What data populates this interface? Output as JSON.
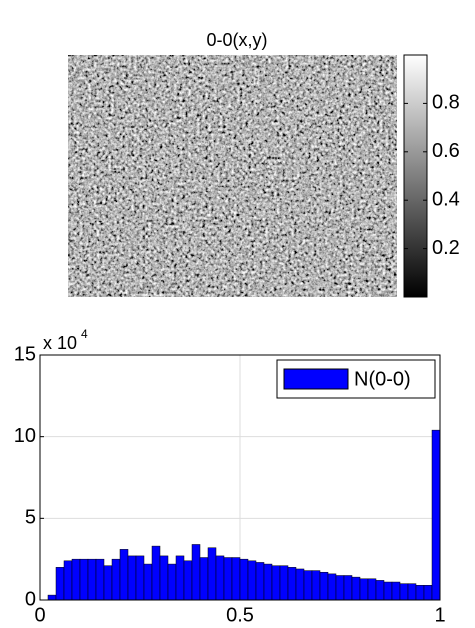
{
  "chart_data": [
    {
      "type": "image",
      "title": "0-0(x,y)",
      "title_color": "#0000ff",
      "clim": [
        0,
        1
      ],
      "cticks": [
        0.2,
        0.4,
        0.6,
        0.8
      ]
    },
    {
      "type": "histogram",
      "color": "#0000ff",
      "name": "N(0-0)",
      "legend": "upper right",
      "grid": true,
      "bins": [
        0,
        0.02,
        0.04,
        0.06,
        0.08,
        0.1,
        0.12,
        0.14,
        0.16,
        0.18,
        0.2,
        0.22,
        0.24,
        0.26,
        0.28,
        0.3,
        0.32,
        0.34,
        0.36,
        0.38,
        0.4,
        0.42,
        0.44,
        0.46,
        0.48,
        0.5,
        0.52,
        0.54,
        0.56,
        0.58,
        0.6,
        0.62,
        0.64,
        0.66,
        0.68,
        0.7,
        0.72,
        0.74,
        0.76,
        0.78,
        0.8,
        0.82,
        0.84,
        0.86,
        0.88,
        0.9,
        0.92,
        0.94,
        0.96,
        0.98,
        1
      ],
      "values": [
        0,
        3000,
        20000,
        24000,
        25000,
        25000,
        25000,
        25000,
        21000,
        25000,
        31000,
        27000,
        27000,
        22000,
        33000,
        27000,
        22000,
        27000,
        24000,
        34000,
        26000,
        32000,
        27000,
        26000,
        26000,
        25000,
        24000,
        23000,
        22000,
        21000,
        21000,
        20000,
        19000,
        18000,
        18000,
        17000,
        16000,
        15000,
        15000,
        14000,
        13000,
        13000,
        12000,
        11000,
        11000,
        10000,
        10000,
        9000,
        9000,
        104000
      ],
      "xlim": [
        0,
        1
      ],
      "xticks": [
        0,
        0.5,
        1
      ],
      "ylim": [
        0,
        150000
      ],
      "yticks": [
        {
          "value": 0,
          "label": "0"
        },
        {
          "value": 50000,
          "label": "5"
        },
        {
          "value": 100000,
          "label": "10"
        },
        {
          "value": 150000,
          "label": "15"
        }
      ],
      "y_multiplier": {
        "base": "x 10",
        "exponent": "4"
      }
    }
  ]
}
